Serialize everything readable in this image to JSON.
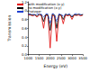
{
  "chart_data": {
    "type": "line",
    "x_label": "Energy (eV)",
    "y_label": "Transmission",
    "x": [
      1000,
      1100,
      1200,
      1300,
      1400,
      1500,
      1600,
      1700,
      1800,
      1900,
      2000,
      2100,
      2200,
      2300,
      2400,
      2500,
      2600,
      2700,
      2800,
      2900,
      3000,
      3100,
      3200,
      3300,
      3400,
      3500
    ],
    "series": [
      {
        "name": "with modification (x-y)",
        "color": "#e00000",
        "line_style": "solid",
        "marker": "none",
        "values": [
          0.9,
          0.9,
          0.88,
          0.9,
          0.85,
          0.9,
          0.89,
          0.6,
          0.9,
          0.88,
          0.15,
          0.9,
          0.87,
          0.3,
          0.9,
          0.89,
          0.7,
          0.9,
          0.88,
          0.9,
          0.8,
          0.9,
          0.89,
          0.9,
          0.88,
          0.9
        ]
      },
      {
        "name": "no modification (x-y)",
        "color": "#000000",
        "line_style": "solid",
        "marker": "none",
        "values": [
          0.92,
          0.91,
          0.9,
          0.91,
          0.88,
          0.92,
          0.9,
          0.75,
          0.91,
          0.9,
          0.55,
          0.92,
          0.9,
          0.6,
          0.91,
          0.9,
          0.8,
          0.92,
          0.9,
          0.91,
          0.85,
          0.91,
          0.9,
          0.92,
          0.9,
          0.91
        ]
      },
      {
        "name": "Fratzaar",
        "color": "#1f3fd0",
        "line_style": "dashed",
        "marker": "none",
        "values": [
          0.93,
          0.92,
          0.92,
          0.9,
          0.93,
          0.91,
          0.92,
          0.85,
          0.93,
          0.92,
          0.7,
          0.93,
          0.92,
          0.75,
          0.92,
          0.93,
          0.86,
          0.92,
          0.91,
          0.93,
          0.88,
          0.92,
          0.93,
          0.92,
          0.91,
          0.93
        ]
      }
    ],
    "xlim": [
      1000,
      3500
    ],
    "xticks": [
      1000,
      1500,
      2000,
      2500,
      3000,
      3500
    ],
    "ylim": [
      0,
      1.2
    ],
    "yticks": [
      {
        "value": 0,
        "label": "0.0"
      },
      0.2,
      0.4,
      0.6,
      0.8,
      {
        "value": 1,
        "label": "1.0"
      },
      1.2
    ],
    "grid": false,
    "legend": "top-left"
  }
}
